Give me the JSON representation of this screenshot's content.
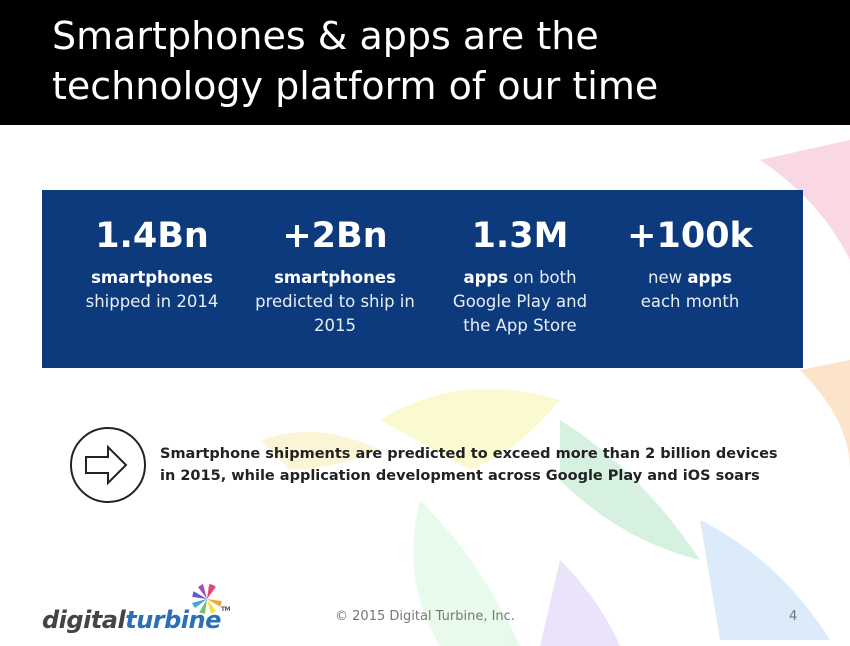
{
  "header": {
    "title_lines": [
      "Smartphones & apps are the",
      "technology platform of our time"
    ]
  },
  "stats": [
    {
      "value": "1.4Bn",
      "description": [
        {
          "text": "smartphones",
          "bold": true
        },
        {
          "text": "shipped in 2014",
          "bold": false,
          "break_before": true
        }
      ]
    },
    {
      "value": "+2Bn",
      "description": [
        {
          "text": "smartphones",
          "bold": true
        },
        {
          "text": "predicted to ship in 2015",
          "bold": false,
          "break_before": true
        }
      ]
    },
    {
      "value": "1.3M",
      "description": [
        {
          "text": "apps",
          "bold": true
        },
        {
          "text": "on both Google Play and the App Store",
          "bold": false,
          "break_before": false
        }
      ]
    },
    {
      "value": "+100k",
      "description": [
        {
          "text": "new",
          "bold": false
        },
        {
          "text": "apps",
          "bold": true,
          "break_before": false
        },
        {
          "text": "each month",
          "bold": false,
          "break_before": true
        }
      ]
    }
  ],
  "callout": {
    "lines": [
      "Smartphone shipments are predicted to exceed more than 2 billion devices",
      "in 2015, while application development across Google Play and iOS soars"
    ]
  },
  "footer": {
    "copyright": "© 2015 Digital Turbine, Inc.",
    "page_number": "4"
  },
  "logo": {
    "digital": "digital",
    "turbine": "turbine",
    "tm": "TM"
  }
}
